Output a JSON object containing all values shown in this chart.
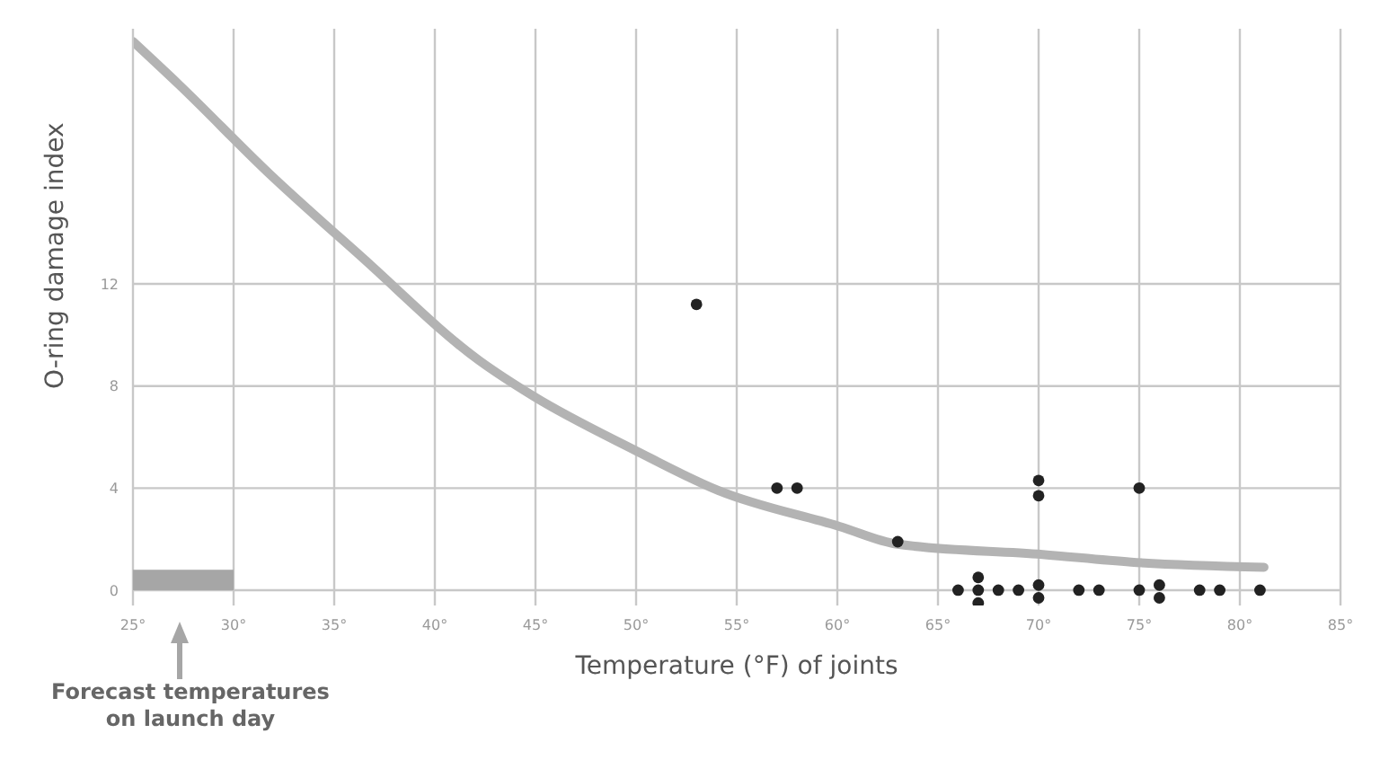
{
  "chart_data": {
    "type": "scatter",
    "xlabel": "Temperature (°F) of joints",
    "ylabel": "O-ring damage index",
    "xlim": [
      25,
      85
    ],
    "xticks": [
      {
        "value": 25,
        "label": "25°"
      },
      {
        "value": 30,
        "label": "30°"
      },
      {
        "value": 35,
        "label": "35°"
      },
      {
        "value": 40,
        "label": "40°"
      },
      {
        "value": 45,
        "label": "45°"
      },
      {
        "value": 50,
        "label": "50°"
      },
      {
        "value": 55,
        "label": "55°"
      },
      {
        "value": 60,
        "label": "60°"
      },
      {
        "value": 65,
        "label": "65°"
      },
      {
        "value": 70,
        "label": "70°"
      },
      {
        "value": 75,
        "label": "75°"
      },
      {
        "value": 80,
        "label": "80°"
      },
      {
        "value": 85,
        "label": "85°"
      }
    ],
    "ylim": [
      -0.6,
      22
    ],
    "yticks": [
      0,
      4,
      8,
      12
    ],
    "grid": true,
    "series": [
      {
        "type": "line",
        "marker": "none",
        "color": "#b3b3b3",
        "x": [
          25,
          27.3,
          31.8,
          36.3,
          42.2,
          44.9,
          49.9,
          54.1,
          60.1,
          63.0,
          70.2,
          74.6,
          81.2
        ],
        "values": [
          21.5,
          19.8,
          16.3,
          13.1,
          9.0,
          7.6,
          5.5,
          3.9,
          2.5,
          1.8,
          1.4,
          1.1,
          0.9
        ]
      },
      {
        "marker": "circle",
        "color": "#222222",
        "x": [
          53,
          57,
          58,
          63,
          66,
          67,
          67,
          67,
          68,
          69,
          70,
          70,
          70,
          70,
          72,
          73,
          75,
          75,
          76,
          76,
          78,
          79,
          81
        ],
        "values": [
          11.2,
          4,
          4,
          1.9,
          0,
          0.5,
          0,
          -0.5,
          0,
          0,
          4.3,
          3.7,
          0.2,
          -0.3,
          0,
          0,
          4,
          0,
          0.2,
          -0.3,
          0,
          0,
          0
        ]
      },
      {
        "type": "bar",
        "color": "#a6a6a6",
        "x": [
          27.5
        ],
        "values": [
          0.8
        ]
      }
    ],
    "annotations": [
      "Forecast temperatures on launch day"
    ]
  }
}
